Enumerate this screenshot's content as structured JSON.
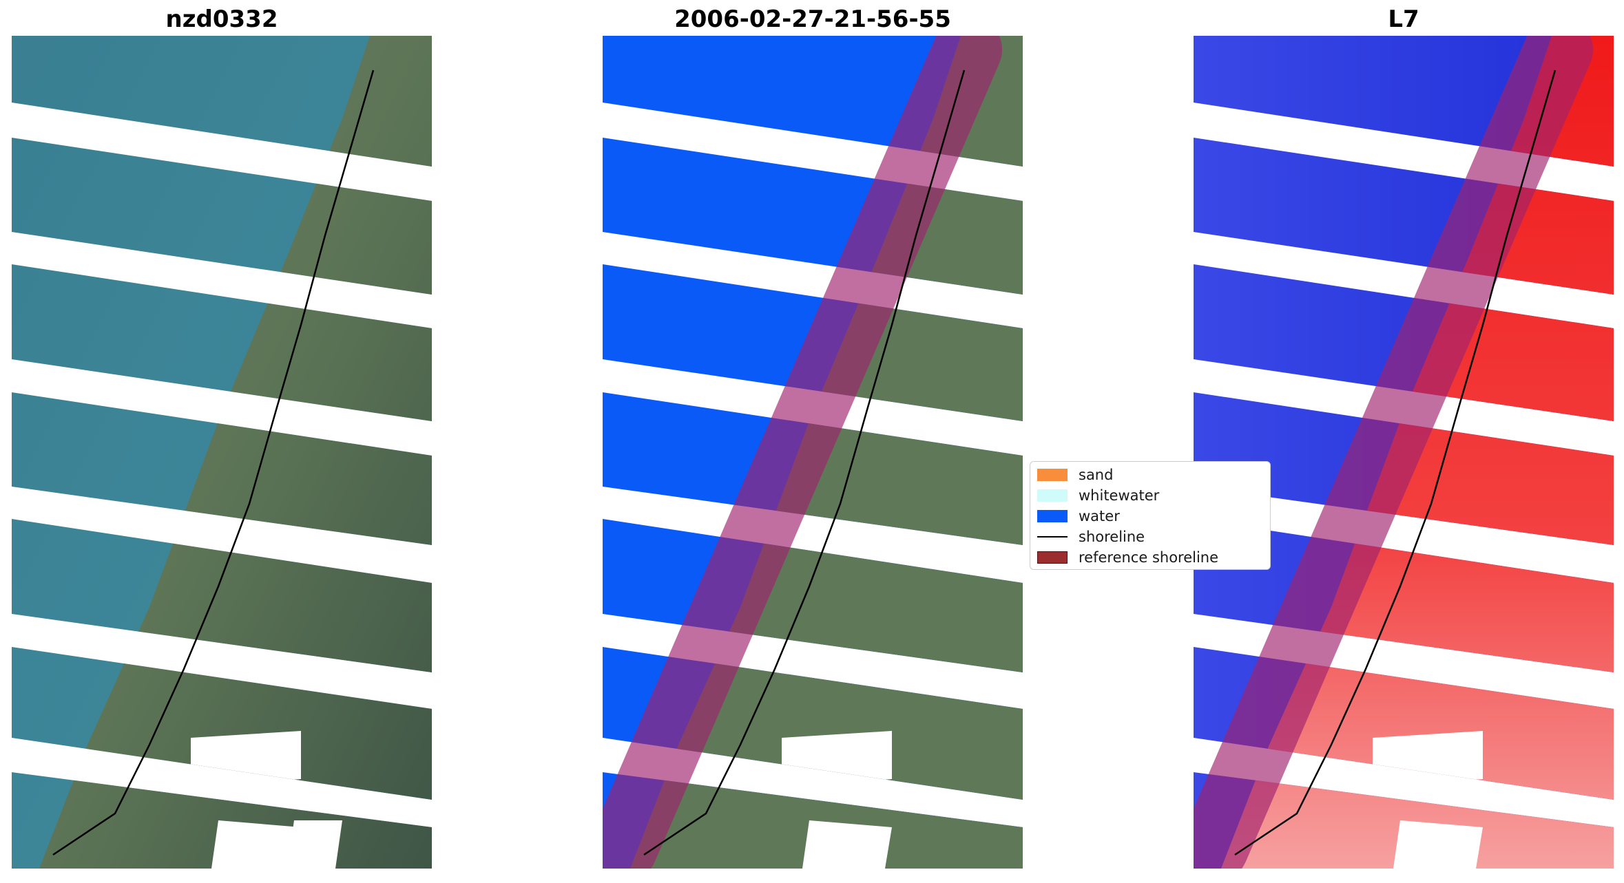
{
  "panels": [
    {
      "title": "nzd0332"
    },
    {
      "title": "2006-02-27-21-56-55"
    },
    {
      "title": "L7"
    }
  ],
  "legend": {
    "items": [
      {
        "label": "sand",
        "color": "#f88d3c"
      },
      {
        "label": "whitewater",
        "color": "#cffcfb"
      },
      {
        "label": "water",
        "color": "#0a5af8"
      },
      {
        "label": "shoreline",
        "color": "#000000"
      },
      {
        "label": "reference shoreline",
        "color": "#9b2d2f"
      }
    ]
  },
  "colors": {
    "sea_rgb": "#3a8096",
    "land_rgb": "#5f7a5c",
    "water_class": "#0a5af8",
    "buffer": "#a0226e",
    "index_water": "#2a3ae0",
    "index_land": "#f02020"
  }
}
